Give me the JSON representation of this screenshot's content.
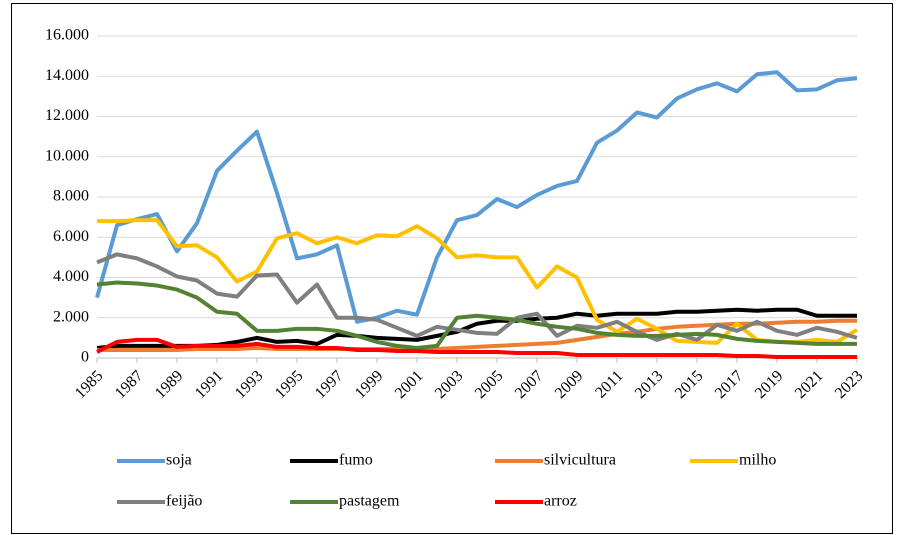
{
  "chart_data": {
    "type": "line",
    "x": [
      1985,
      1986,
      1987,
      1988,
      1989,
      1990,
      1991,
      1992,
      1993,
      1994,
      1995,
      1996,
      1997,
      1998,
      1999,
      2000,
      2001,
      2002,
      2003,
      2004,
      2005,
      2006,
      2007,
      2008,
      2009,
      2010,
      2011,
      2012,
      2013,
      2014,
      2015,
      2016,
      2017,
      2018,
      2019,
      2020,
      2021,
      2022,
      2023
    ],
    "xlim": [
      1985,
      2023
    ],
    "xticks": [
      1985,
      1987,
      1989,
      1991,
      1993,
      1995,
      1997,
      1999,
      2001,
      2003,
      2005,
      2007,
      2009,
      2011,
      2013,
      2015,
      2017,
      2019,
      2021,
      2023
    ],
    "ylim": [
      0,
      16000
    ],
    "yticks": [
      0,
      {
        "value": 2000,
        "label": "2.000"
      },
      {
        "value": 4000,
        "label": "4.000"
      },
      {
        "value": 6000,
        "label": "6.000"
      },
      {
        "value": 8000,
        "label": "8.000"
      },
      {
        "value": 10000,
        "label": "10.000"
      },
      {
        "value": 12000,
        "label": "12.000"
      },
      {
        "value": 14000,
        "label": "14.000"
      },
      {
        "value": 16000,
        "label": "16.000"
      }
    ],
    "grid": true,
    "legend": "bottom",
    "series": [
      {
        "name": "soja",
        "color": "#5b9bd5",
        "values": [
          3000,
          6600,
          6900,
          7150,
          5300,
          6700,
          9300,
          10300,
          11250,
          8200,
          4950,
          5150,
          5600,
          1800,
          2000,
          2350,
          2150,
          5000,
          6850,
          7100,
          7900,
          7500,
          8100,
          8550,
          8800,
          10700,
          11300,
          12200,
          11950,
          12900,
          13350,
          13650,
          13250,
          14100,
          14200,
          13300,
          13350,
          13800,
          13900
        ]
      },
      {
        "name": "fumo",
        "color": "#000000",
        "values": [
          500,
          600,
          600,
          600,
          600,
          600,
          650,
          800,
          1000,
          800,
          850,
          700,
          1150,
          1100,
          1000,
          950,
          900,
          1100,
          1300,
          1700,
          1850,
          1850,
          1950,
          2000,
          2200,
          2100,
          2200,
          2200,
          2200,
          2300,
          2300,
          2350,
          2400,
          2350,
          2400,
          2400,
          2100,
          2100,
          2100
        ]
      },
      {
        "name": "silvicultura",
        "color": "#ed7d31",
        "values": [
          400,
          400,
          400,
          400,
          400,
          450,
          450,
          450,
          500,
          450,
          450,
          450,
          450,
          450,
          450,
          450,
          450,
          450,
          500,
          550,
          600,
          650,
          700,
          750,
          900,
          1050,
          1200,
          1300,
          1450,
          1550,
          1600,
          1650,
          1700,
          1700,
          1750,
          1800,
          1800,
          1850,
          1850
        ]
      },
      {
        "name": "milho",
        "color": "#ffc000",
        "values": [
          6800,
          6800,
          6850,
          6850,
          5550,
          5600,
          5000,
          3800,
          4300,
          5950,
          6200,
          5700,
          6000,
          5700,
          6100,
          6050,
          6550,
          5950,
          5000,
          5100,
          5000,
          5000,
          3500,
          4550,
          4000,
          1900,
          1300,
          1950,
          1450,
          850,
          800,
          750,
          1700,
          900,
          800,
          800,
          900,
          800,
          1400
        ]
      },
      {
        "name": "feijão",
        "color": "#7f7f7f",
        "values": [
          4750,
          5150,
          4950,
          4550,
          4050,
          3850,
          3200,
          3050,
          4100,
          4150,
          2750,
          3650,
          2000,
          2000,
          1900,
          1500,
          1100,
          1550,
          1400,
          1250,
          1200,
          2000,
          2200,
          1100,
          1600,
          1500,
          1800,
          1300,
          900,
          1200,
          900,
          1650,
          1350,
          1800,
          1350,
          1150,
          1500,
          1300,
          1000
        ]
      },
      {
        "name": "pastagem",
        "color": "#548235",
        "values": [
          3650,
          3750,
          3700,
          3600,
          3400,
          3000,
          2300,
          2200,
          1350,
          1350,
          1450,
          1450,
          1350,
          1100,
          800,
          600,
          500,
          600,
          2000,
          2100,
          2000,
          1900,
          1700,
          1550,
          1450,
          1250,
          1150,
          1100,
          1100,
          1150,
          1200,
          1150,
          950,
          850,
          800,
          750,
          700,
          700,
          700
        ]
      },
      {
        "name": "arroz",
        "color": "#ff0000",
        "values": [
          300,
          800,
          900,
          900,
          550,
          600,
          600,
          600,
          700,
          550,
          550,
          500,
          500,
          400,
          400,
          350,
          350,
          300,
          300,
          300,
          300,
          250,
          250,
          250,
          150,
          150,
          150,
          150,
          150,
          150,
          150,
          150,
          100,
          100,
          50,
          50,
          50,
          50,
          50
        ]
      }
    ]
  }
}
